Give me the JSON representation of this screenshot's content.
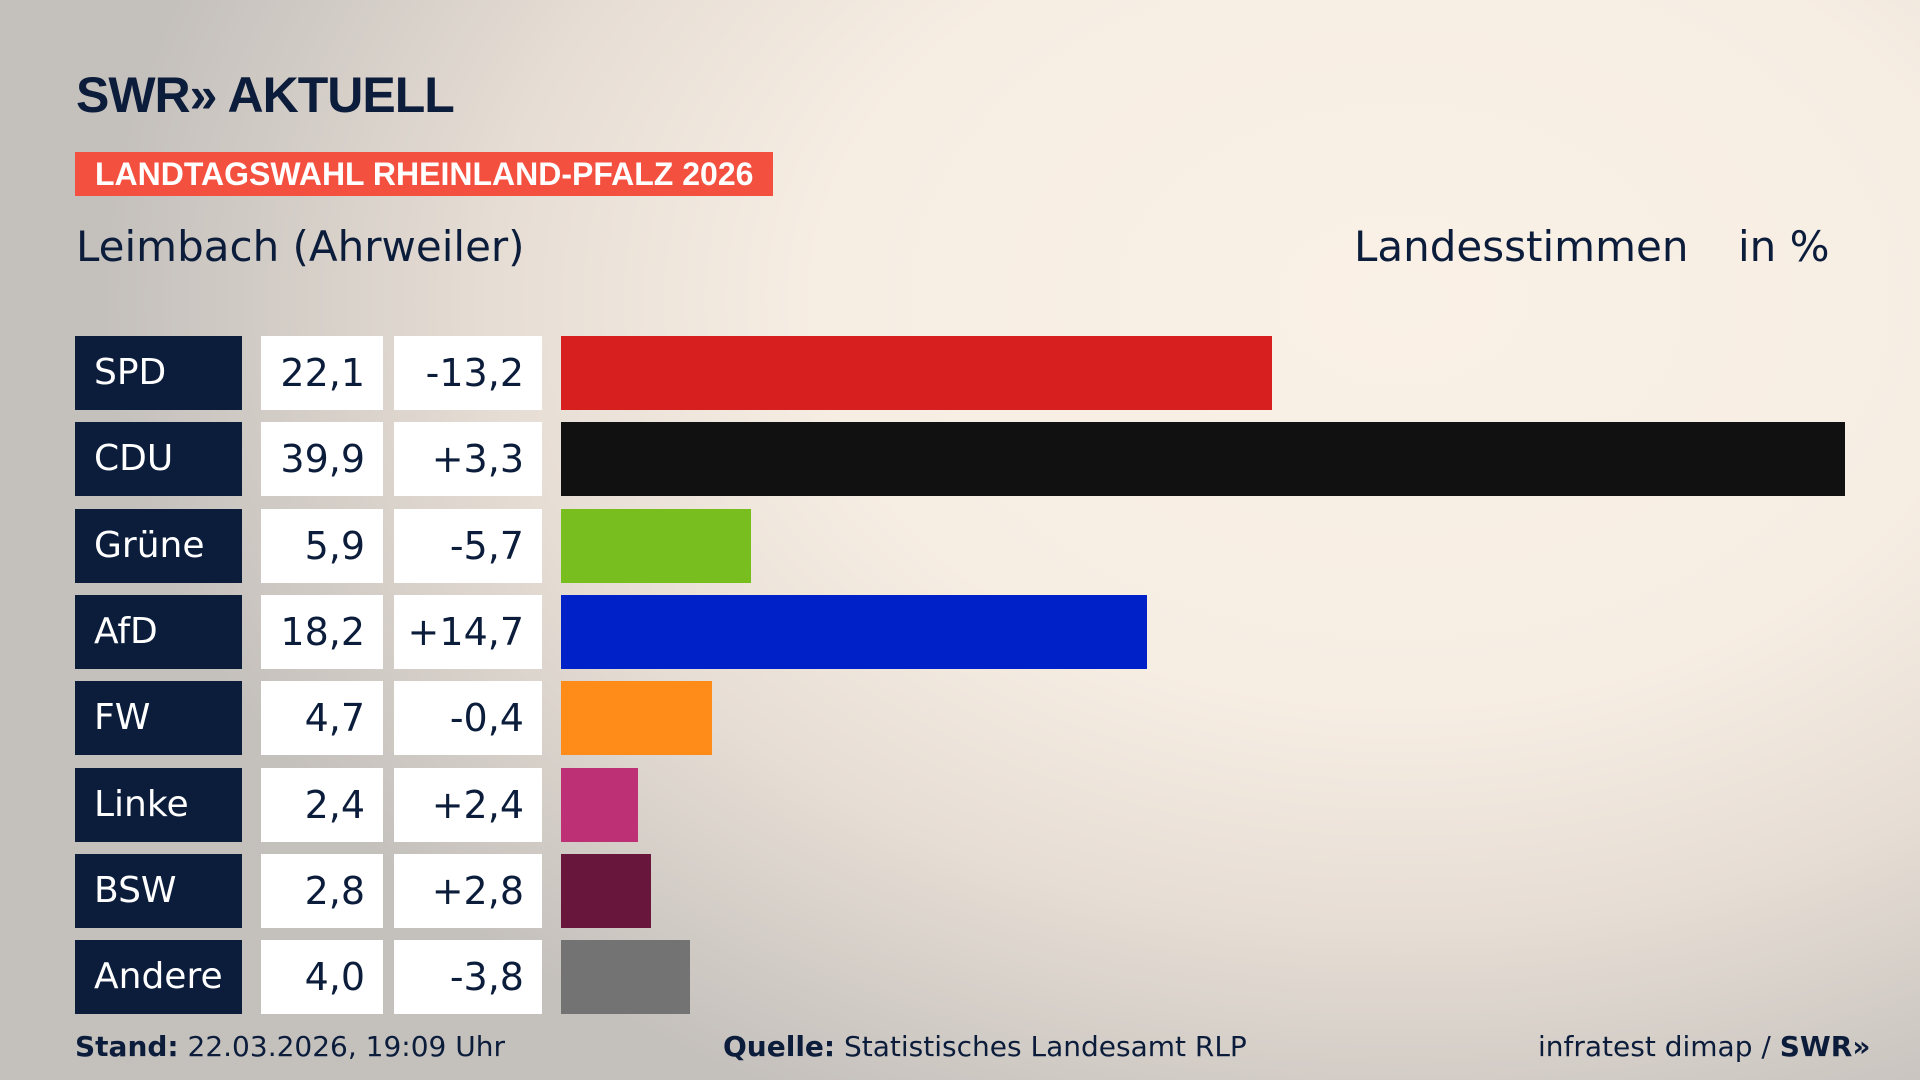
{
  "header": {
    "logo": "SWR» AKTUELL",
    "banner": "LANDTAGSWAHL RHEINLAND-PFALZ 2026",
    "location": "Leimbach (Ahrweiler)",
    "vote_type": "Landesstimmen",
    "unit": "in %"
  },
  "chart_data": {
    "type": "bar",
    "orientation": "horizontal",
    "categories": [
      "SPD",
      "CDU",
      "Grüne",
      "AfD",
      "FW",
      "Linke",
      "BSW",
      "Andere"
    ],
    "values": [
      22.1,
      39.9,
      5.9,
      18.2,
      4.7,
      2.4,
      2.8,
      4.0
    ],
    "values_label": [
      "22,1",
      "39,9",
      "5,9",
      "18,2",
      "4,7",
      "2,4",
      "2,8",
      "4,0"
    ],
    "change": [
      "-13,2",
      "+3,3",
      "-5,7",
      "+14,7",
      "-0,4",
      "+2,4",
      "+2,8",
      "-3,8"
    ],
    "colors": [
      "#d81f1f",
      "#111111",
      "#78be1e",
      "#0020c8",
      "#ff8c19",
      "#bd3075",
      "#69163d",
      "#737373"
    ],
    "xlim": [
      0,
      39.9
    ]
  },
  "footer": {
    "stand_label": "Stand:",
    "stand": "22.03.2026, 19:09 Uhr",
    "source_label": "Quelle:",
    "source": "Statistisches Landesamt RLP",
    "credit": "infratest dimap / ",
    "credit_logo": "SWR»"
  }
}
